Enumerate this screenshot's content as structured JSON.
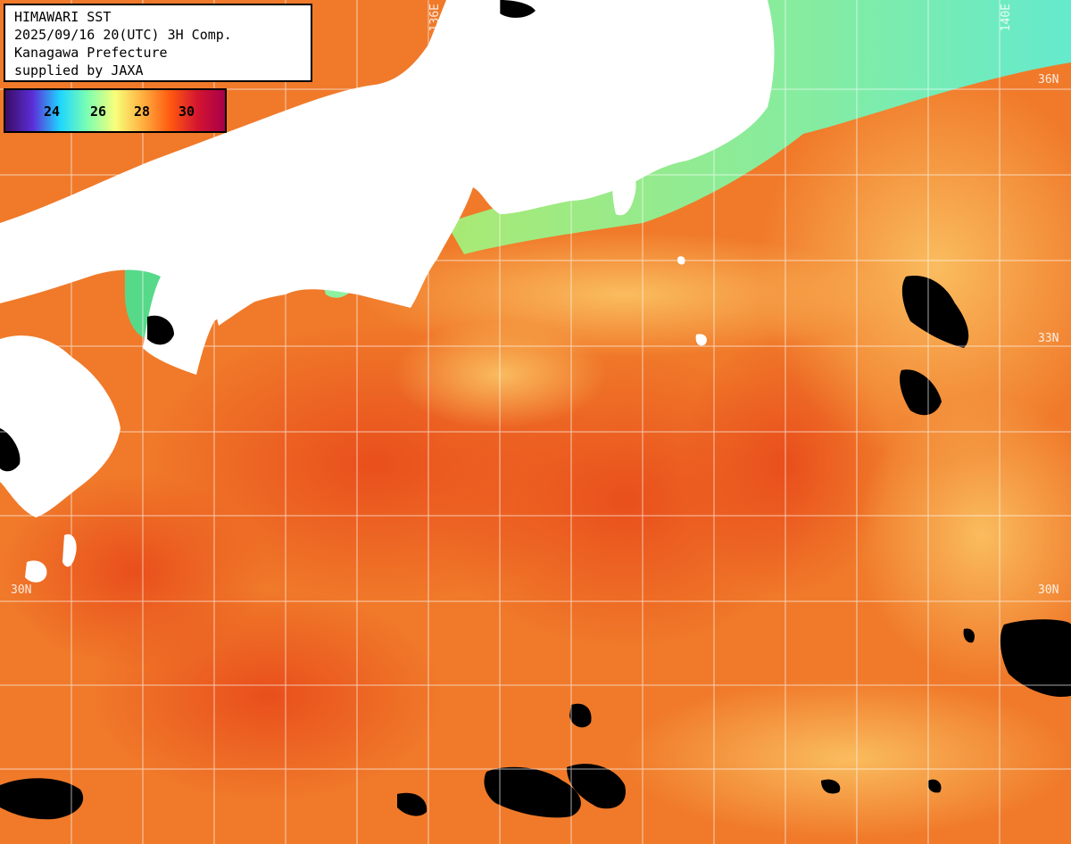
{
  "header": {
    "lines": [
      "HIMAWARI SST",
      "2025/09/16 20(UTC) 3H Comp.",
      "Kanagawa Prefecture",
      "supplied by JAXA"
    ]
  },
  "colorbar": {
    "ticks": [
      "24",
      "26",
      "28",
      "30"
    ],
    "colors": [
      "#3a0d63",
      "#5b2ed8",
      "#1fd6ff",
      "#7dffb0",
      "#f8ff7a",
      "#ffb040",
      "#ff5a10",
      "#d41530",
      "#a8004a"
    ]
  },
  "grid": {
    "lon_labels": [
      "136E",
      "140E"
    ],
    "lat_labels": [
      "36N",
      "33N",
      "30N",
      "30N"
    ]
  },
  "palette": {
    "land": "#ffffff",
    "cloud": "#000000",
    "sea_warm": "#f07a2a",
    "sea_hot": "#e8501e",
    "sea_mild": "#fbbf60",
    "sea_cool": "#b8f07a",
    "sea_cold": "#6ef0c0",
    "grid": "#ffffff"
  }
}
